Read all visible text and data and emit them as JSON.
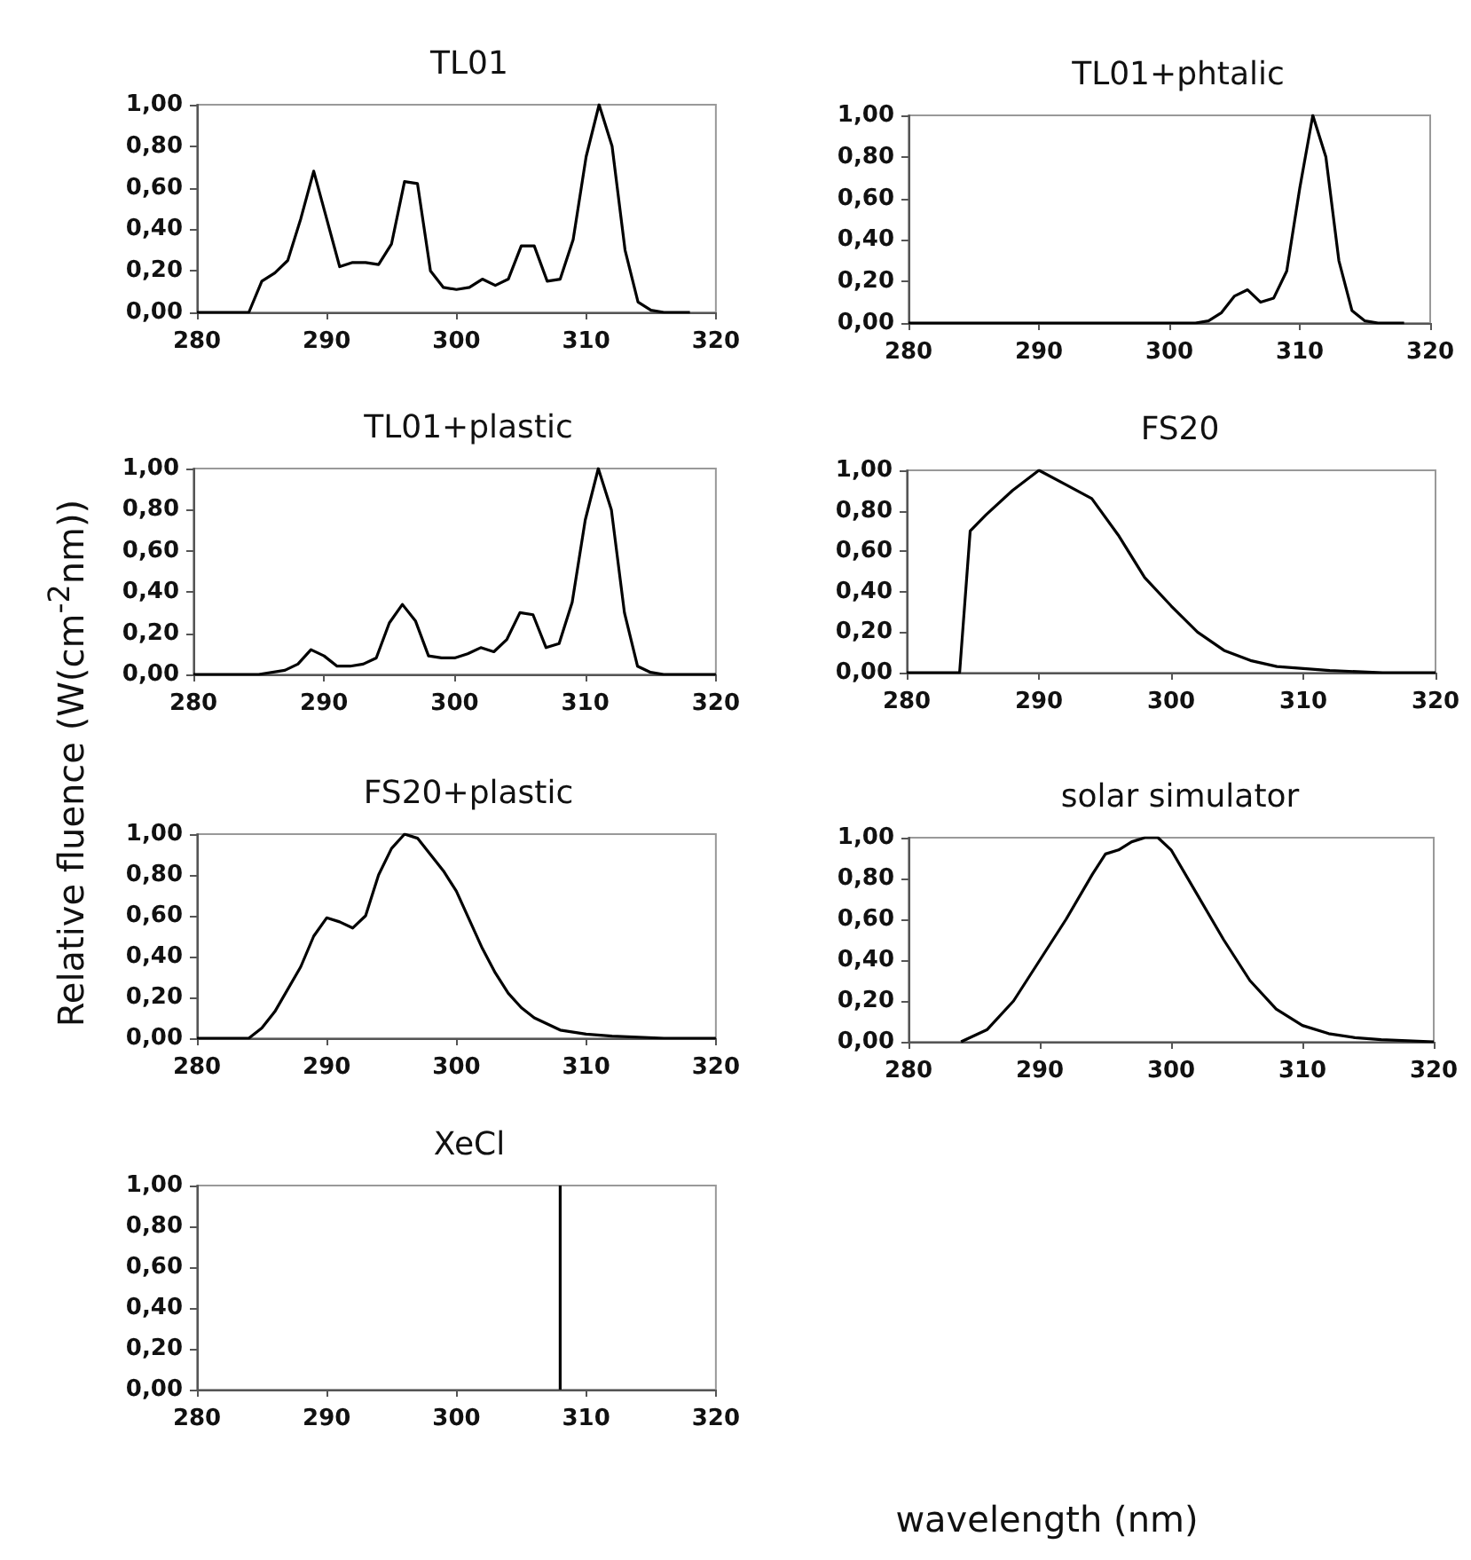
{
  "chart_data": [
    {
      "type": "line",
      "title": "TL01",
      "xlim": [
        280,
        320
      ],
      "xticks": [
        280,
        290,
        300,
        310,
        320
      ],
      "ylim": [
        0,
        1
      ],
      "yticks": [
        {
          "value": 0,
          "label": "0,00"
        },
        {
          "value": 0.2,
          "label": "0,20"
        },
        {
          "value": 0.4,
          "label": "0,40"
        },
        {
          "value": 0.6,
          "label": "0,60"
        },
        {
          "value": 0.8,
          "label": "0,80"
        },
        {
          "value": 1,
          "label": "1,00"
        }
      ],
      "grid": false,
      "series": [
        {
          "color": "#000000",
          "x": [
            280,
            284,
            285,
            286,
            287,
            288,
            289,
            290,
            291,
            292,
            293,
            294,
            295,
            296,
            297,
            298,
            299,
            300,
            301,
            302,
            303,
            304,
            305,
            306,
            307,
            308,
            309,
            310,
            311,
            312,
            313,
            314,
            315,
            316,
            318
          ],
          "values": [
            0,
            0,
            0.15,
            0.19,
            0.25,
            0.45,
            0.68,
            0.45,
            0.22,
            0.24,
            0.24,
            0.23,
            0.33,
            0.63,
            0.62,
            0.2,
            0.12,
            0.11,
            0.12,
            0.16,
            0.13,
            0.16,
            0.32,
            0.32,
            0.15,
            0.16,
            0.35,
            0.75,
            1.0,
            0.8,
            0.3,
            0.05,
            0.01,
            0,
            0
          ]
        }
      ]
    },
    {
      "type": "line",
      "title": "TL01+phtalic",
      "xlim": [
        280,
        320
      ],
      "xticks": [
        280,
        290,
        300,
        310,
        320
      ],
      "ylim": [
        0,
        1
      ],
      "yticks": [
        {
          "value": 0,
          "label": "0,00"
        },
        {
          "value": 0.2,
          "label": "0,20"
        },
        {
          "value": 0.4,
          "label": "0,40"
        },
        {
          "value": 0.6,
          "label": "0,60"
        },
        {
          "value": 0.8,
          "label": "0,80"
        },
        {
          "value": 1,
          "label": "1,00"
        }
      ],
      "grid": false,
      "series": [
        {
          "color": "#000000",
          "x": [
            280,
            302,
            303,
            304,
            305,
            306,
            307,
            308,
            309,
            310,
            311,
            312,
            313,
            314,
            315,
            316,
            318
          ],
          "values": [
            0,
            0,
            0.01,
            0.05,
            0.13,
            0.16,
            0.1,
            0.12,
            0.25,
            0.65,
            1.0,
            0.8,
            0.3,
            0.06,
            0.01,
            0,
            0
          ]
        }
      ]
    },
    {
      "type": "line",
      "title": "TL01+plastic",
      "ylabel": "Relative fluence (W(cm$^{-2}$nm))",
      "xlim": [
        280,
        320
      ],
      "xticks": [
        280,
        290,
        300,
        310,
        320
      ],
      "ylim": [
        0,
        1
      ],
      "yticks": [
        {
          "value": 0,
          "label": "0,00"
        },
        {
          "value": 0.2,
          "label": "0,20"
        },
        {
          "value": 0.4,
          "label": "0,40"
        },
        {
          "value": 0.6,
          "label": "0,60"
        },
        {
          "value": 0.8,
          "label": "0,80"
        },
        {
          "value": 1,
          "label": "1,00"
        }
      ],
      "grid": false,
      "series": [
        {
          "color": "#000000",
          "x": [
            280,
            285,
            287,
            288,
            289,
            290,
            291,
            292,
            293,
            294,
            295,
            296,
            297,
            298,
            299,
            300,
            301,
            302,
            303,
            304,
            305,
            306,
            307,
            308,
            309,
            310,
            311,
            312,
            313,
            314,
            315,
            316,
            320
          ],
          "values": [
            0,
            0,
            0.02,
            0.05,
            0.12,
            0.09,
            0.04,
            0.04,
            0.05,
            0.08,
            0.25,
            0.34,
            0.26,
            0.09,
            0.08,
            0.08,
            0.1,
            0.13,
            0.11,
            0.17,
            0.3,
            0.29,
            0.13,
            0.15,
            0.35,
            0.75,
            1.0,
            0.8,
            0.3,
            0.04,
            0.01,
            0,
            0
          ]
        }
      ]
    },
    {
      "type": "line",
      "title": "FS20",
      "xlim": [
        280,
        320
      ],
      "xticks": [
        280,
        290,
        300,
        310,
        320
      ],
      "ylim": [
        0,
        1
      ],
      "yticks": [
        {
          "value": 0,
          "label": "0,00"
        },
        {
          "value": 0.2,
          "label": "0,20"
        },
        {
          "value": 0.4,
          "label": "0,40"
        },
        {
          "value": 0.6,
          "label": "0,60"
        },
        {
          "value": 0.8,
          "label": "0,80"
        },
        {
          "value": 1,
          "label": "1,00"
        }
      ],
      "grid": false,
      "series": [
        {
          "color": "#000000",
          "x": [
            280,
            284,
            284.8,
            286,
            288,
            290,
            292,
            294,
            296,
            298,
            300,
            302,
            304,
            306,
            308,
            310,
            312,
            316,
            320
          ],
          "values": [
            0,
            0,
            0.7,
            0.78,
            0.9,
            1.0,
            0.93,
            0.86,
            0.68,
            0.47,
            0.33,
            0.2,
            0.11,
            0.06,
            0.03,
            0.02,
            0.01,
            0,
            0
          ]
        }
      ]
    },
    {
      "type": "line",
      "title": "FS20+plastic",
      "xlim": [
        280,
        320
      ],
      "xticks": [
        280,
        290,
        300,
        310,
        320
      ],
      "ylim": [
        0,
        1
      ],
      "yticks": [
        {
          "value": 0,
          "label": "0,00"
        },
        {
          "value": 0.2,
          "label": "0,20"
        },
        {
          "value": 0.4,
          "label": "0,40"
        },
        {
          "value": 0.6,
          "label": "0,60"
        },
        {
          "value": 0.8,
          "label": "0,80"
        },
        {
          "value": 1,
          "label": "1,00"
        }
      ],
      "grid": false,
      "series": [
        {
          "color": "#000000",
          "x": [
            280,
            284,
            285,
            286,
            288,
            289,
            290,
            291,
            292,
            293,
            294,
            295,
            296,
            297,
            298,
            299,
            300,
            301,
            302,
            303,
            304,
            305,
            306,
            308,
            310,
            312,
            316,
            320
          ],
          "values": [
            0,
            0,
            0.05,
            0.13,
            0.35,
            0.5,
            0.59,
            0.57,
            0.54,
            0.6,
            0.8,
            0.93,
            1.0,
            0.98,
            0.9,
            0.82,
            0.72,
            0.58,
            0.44,
            0.32,
            0.22,
            0.15,
            0.1,
            0.04,
            0.02,
            0.01,
            0,
            0
          ]
        }
      ]
    },
    {
      "type": "line",
      "title": "solar simulator",
      "xlim": [
        280,
        320
      ],
      "xticks": [
        280,
        290,
        300,
        310,
        320
      ],
      "ylim": [
        0,
        1
      ],
      "yticks": [
        {
          "value": 0,
          "label": "0,00"
        },
        {
          "value": 0.2,
          "label": "0,20"
        },
        {
          "value": 0.4,
          "label": "0,40"
        },
        {
          "value": 0.6,
          "label": "0,60"
        },
        {
          "value": 0.8,
          "label": "0,80"
        },
        {
          "value": 1,
          "label": "1,00"
        }
      ],
      "grid": false,
      "series": [
        {
          "color": "#000000",
          "x": [
            284,
            286,
            288,
            290,
            292,
            294,
            295,
            296,
            297,
            298,
            299,
            300,
            302,
            304,
            306,
            308,
            310,
            312,
            314,
            316,
            320
          ],
          "values": [
            0,
            0.06,
            0.2,
            0.4,
            0.6,
            0.82,
            0.92,
            0.94,
            0.98,
            1.0,
            1.0,
            0.94,
            0.72,
            0.5,
            0.3,
            0.16,
            0.08,
            0.04,
            0.02,
            0.01,
            0
          ]
        }
      ]
    },
    {
      "type": "line",
      "title": "XeCl",
      "xlabel": "wavelength (nm)",
      "xlim": [
        280,
        320
      ],
      "xticks": [
        280,
        290,
        300,
        310,
        320
      ],
      "ylim": [
        0,
        1
      ],
      "yticks": [
        {
          "value": 0,
          "label": "0,00"
        },
        {
          "value": 0.2,
          "label": "0,20"
        },
        {
          "value": 0.4,
          "label": "0,40"
        },
        {
          "value": 0.6,
          "label": "0,60"
        },
        {
          "value": 0.8,
          "label": "0,80"
        },
        {
          "value": 1,
          "label": "1,00"
        }
      ],
      "grid": false,
      "series": [
        {
          "color": "#000000",
          "x": [
            308,
            308
          ],
          "values": [
            0,
            1
          ]
        }
      ]
    }
  ]
}
